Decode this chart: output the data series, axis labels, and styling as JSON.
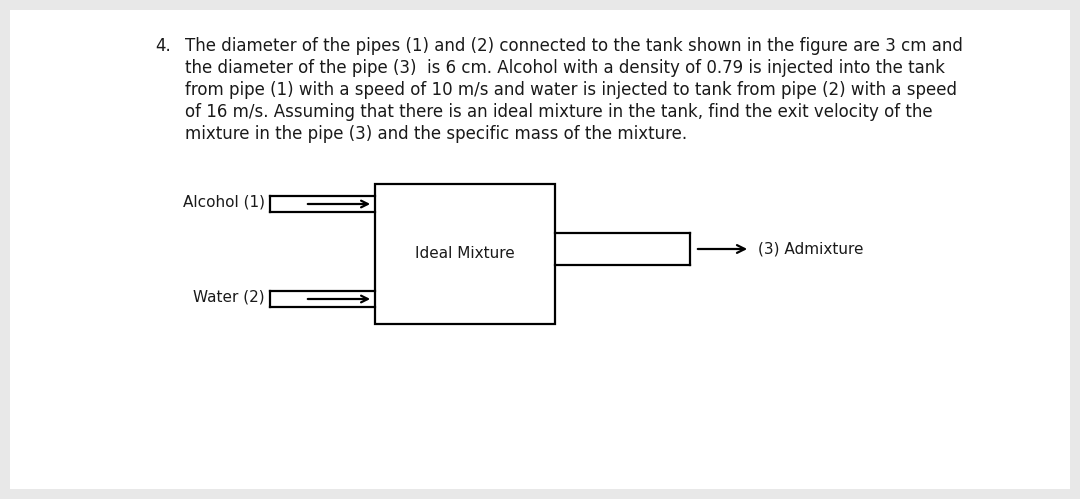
{
  "background_color": "#e8e8e8",
  "inner_bg": "#ffffff",
  "title_number": "4.",
  "problem_lines": [
    "The diameter of the pipes (1) and (2) connected to the tank shown in the figure are 3 cm and",
    "the diameter of the pipe (3)  is 6 cm. Alcohol with a density of 0.79 is injected into the tank",
    "from pipe (1) with a speed of 10 m/s and water is injected to tank from pipe (2) with a speed",
    "of 16 m/s. Assuming that there is an ideal mixture in the tank, find the exit velocity of the",
    "mixture in the pipe (3) and the specific mass of the mixture."
  ],
  "label_alcohol": "Alcohol (1)",
  "label_water": "Water (2)",
  "label_ideal": "Ideal Mixture",
  "label_admixture": "(3) Admixture",
  "font_size_text": 12.0,
  "font_size_labels": 11.0,
  "text_color": "#1a1a1a",
  "line_color": "#000000",
  "line_width": 1.6
}
